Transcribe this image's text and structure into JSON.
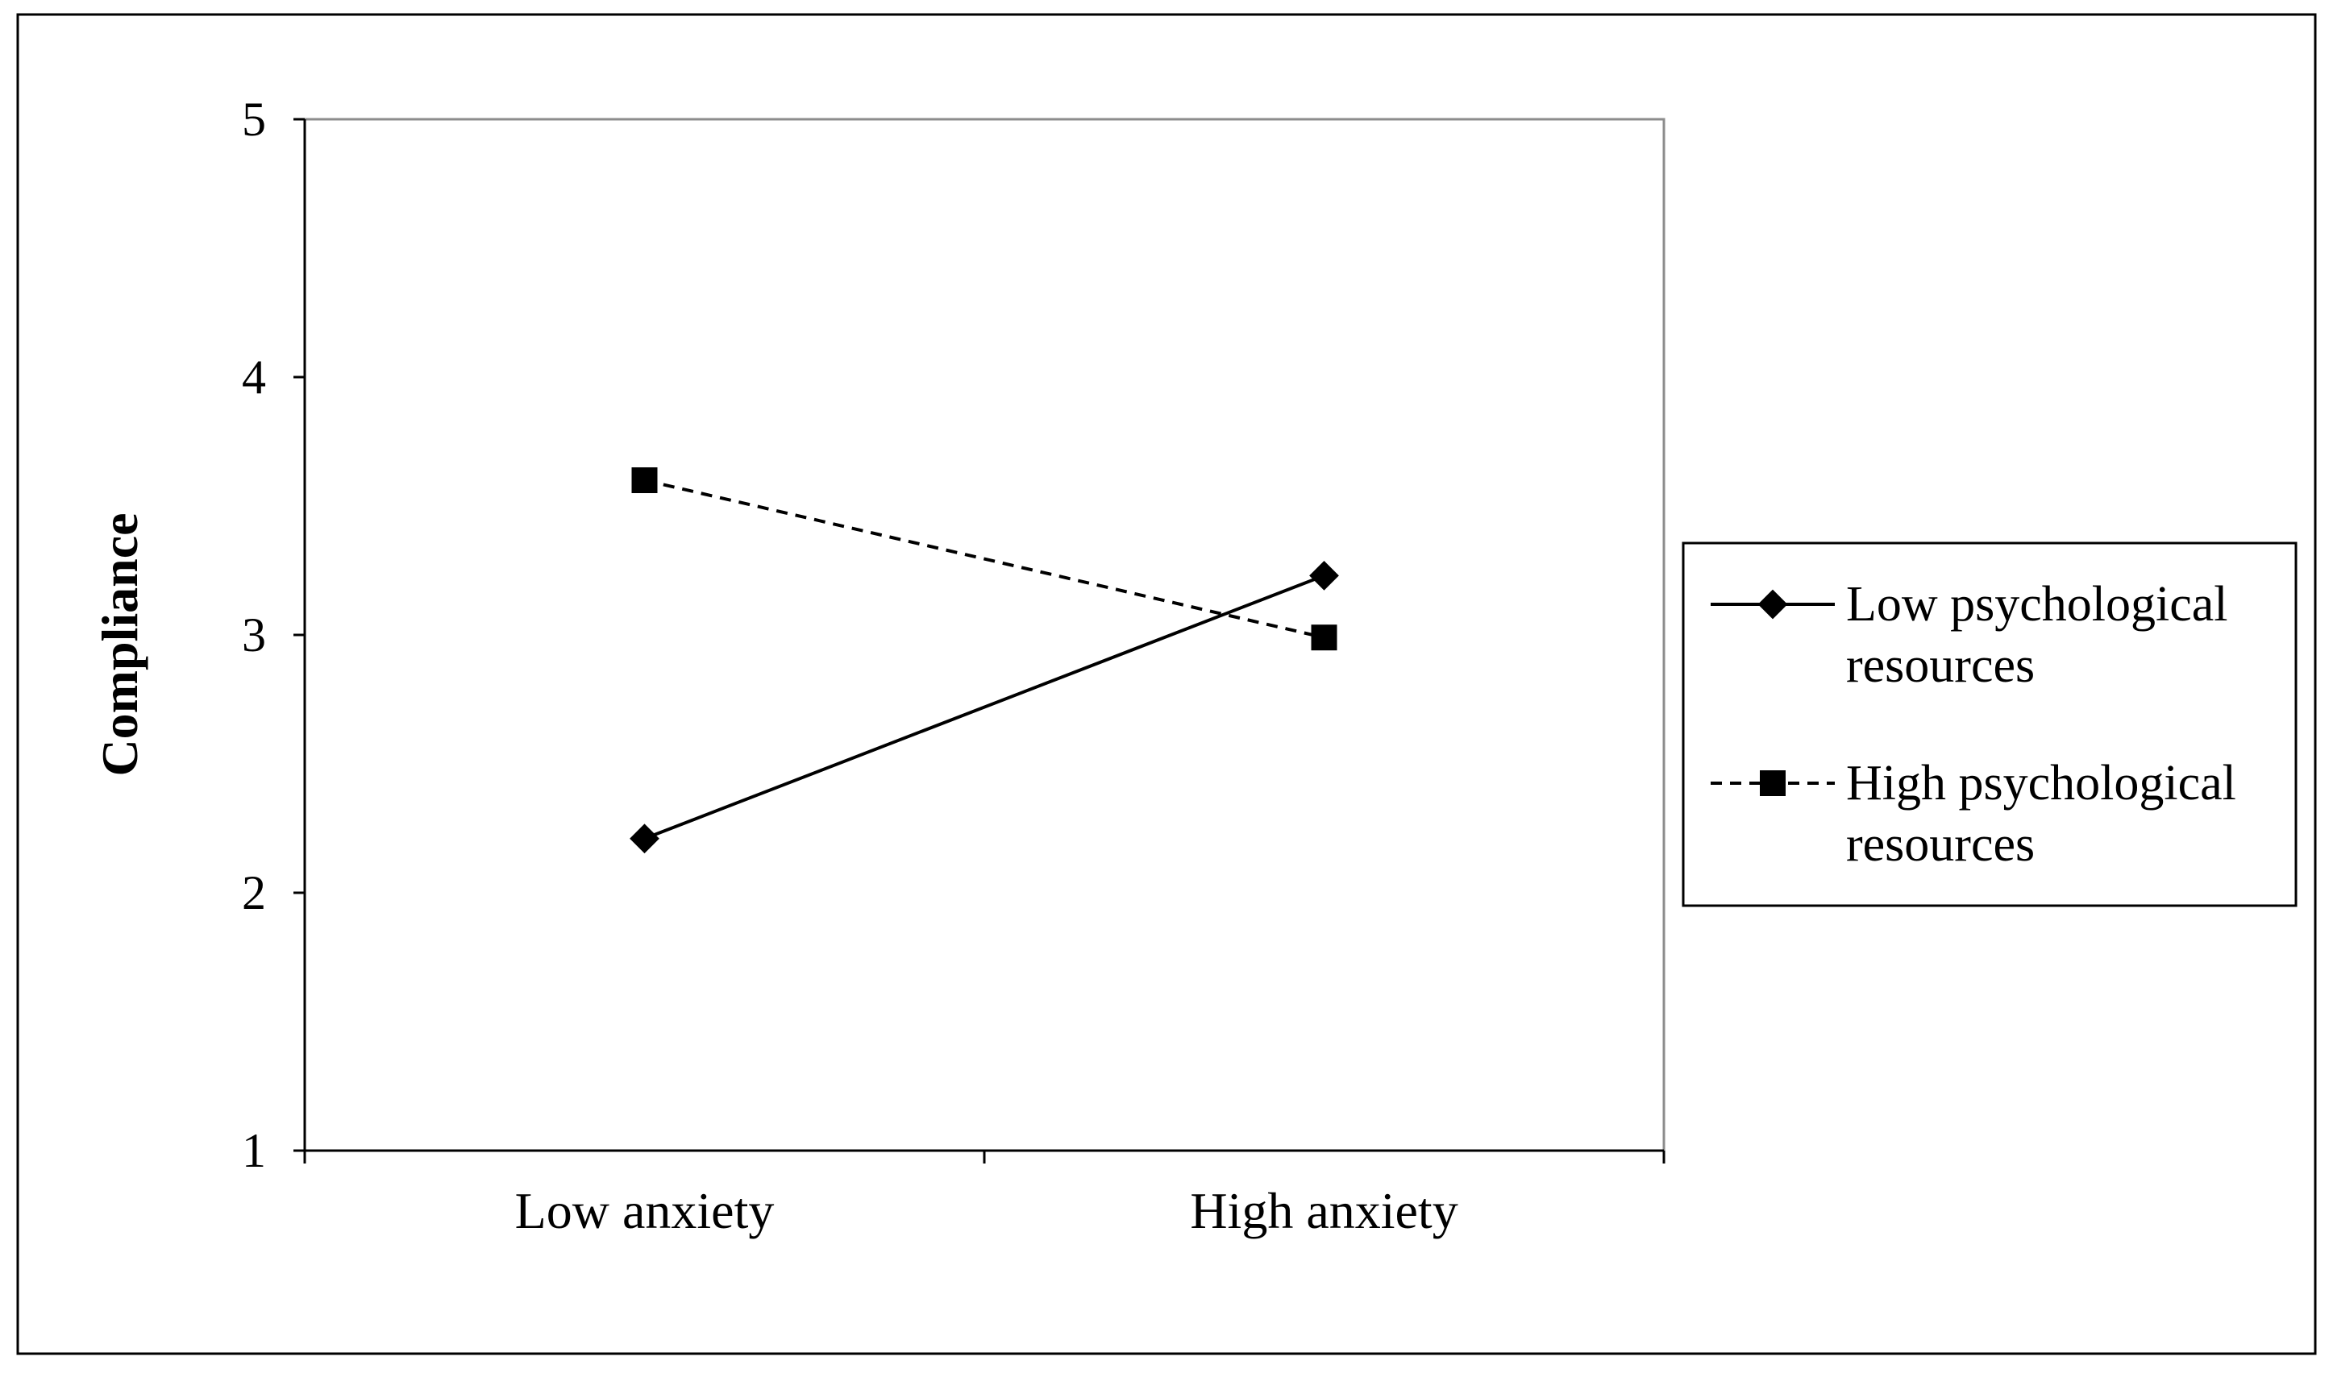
{
  "chart_data": {
    "type": "line",
    "title": "",
    "xlabel": "",
    "ylabel": "Compliance",
    "categories": [
      "Low anxiety",
      "High anxiety"
    ],
    "ylim": [
      1,
      5
    ],
    "yticks": [
      "1",
      "2",
      "3",
      "4",
      "5"
    ],
    "grid": false,
    "legend_position": "right",
    "series": [
      {
        "name": "Low psychological resources",
        "values": [
          2.21,
          3.23
        ],
        "marker": "diamond",
        "line_style": "solid",
        "color": "#000000"
      },
      {
        "name": "High psychological resources",
        "values": [
          3.6,
          2.99
        ],
        "marker": "square",
        "line_style": "dashed",
        "color": "#000000"
      }
    ]
  },
  "legend": {
    "items": [
      {
        "line1": "Low psychological",
        "line2": "resources"
      },
      {
        "line1": "High psychological",
        "line2": "resources"
      }
    ]
  }
}
